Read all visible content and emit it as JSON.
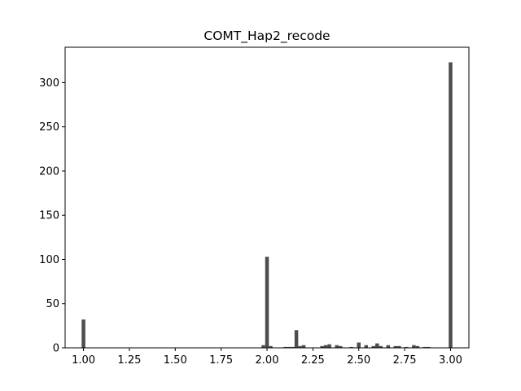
{
  "chart_data": {
    "type": "bar",
    "title": "COMT_Hap2_recode",
    "xlabel": "",
    "ylabel": "",
    "xlim": [
      0.9,
      3.1
    ],
    "ylim": [
      0,
      340
    ],
    "grid": false,
    "bar_color": "#4d4d4d",
    "xticks": [
      1.0,
      1.25,
      1.5,
      1.75,
      2.0,
      2.25,
      2.5,
      2.75,
      3.0
    ],
    "xtick_labels": [
      "1.00",
      "1.25",
      "1.50",
      "1.75",
      "2.00",
      "2.25",
      "2.50",
      "2.75",
      "3.00"
    ],
    "yticks": [
      0,
      50,
      100,
      150,
      200,
      250,
      300
    ],
    "ytick_labels": [
      "0",
      "50",
      "100",
      "150",
      "200",
      "250",
      "300"
    ],
    "bin_width": 0.02,
    "bins": [
      {
        "x": 1.0,
        "count": 32
      },
      {
        "x": 1.98,
        "count": 3
      },
      {
        "x": 2.0,
        "count": 103
      },
      {
        "x": 2.02,
        "count": 2
      },
      {
        "x": 2.1,
        "count": 1
      },
      {
        "x": 2.12,
        "count": 1
      },
      {
        "x": 2.14,
        "count": 1
      },
      {
        "x": 2.16,
        "count": 20
      },
      {
        "x": 2.18,
        "count": 2
      },
      {
        "x": 2.2,
        "count": 3
      },
      {
        "x": 2.3,
        "count": 2
      },
      {
        "x": 2.32,
        "count": 3
      },
      {
        "x": 2.34,
        "count": 4
      },
      {
        "x": 2.38,
        "count": 3
      },
      {
        "x": 2.4,
        "count": 2
      },
      {
        "x": 2.46,
        "count": 1
      },
      {
        "x": 2.5,
        "count": 6
      },
      {
        "x": 2.54,
        "count": 3
      },
      {
        "x": 2.58,
        "count": 2
      },
      {
        "x": 2.6,
        "count": 5
      },
      {
        "x": 2.62,
        "count": 2
      },
      {
        "x": 2.66,
        "count": 3
      },
      {
        "x": 2.7,
        "count": 2
      },
      {
        "x": 2.72,
        "count": 2
      },
      {
        "x": 2.76,
        "count": 1
      },
      {
        "x": 2.8,
        "count": 3
      },
      {
        "x": 2.82,
        "count": 2
      },
      {
        "x": 2.86,
        "count": 1
      },
      {
        "x": 2.88,
        "count": 1
      },
      {
        "x": 3.0,
        "count": 323
      }
    ]
  }
}
